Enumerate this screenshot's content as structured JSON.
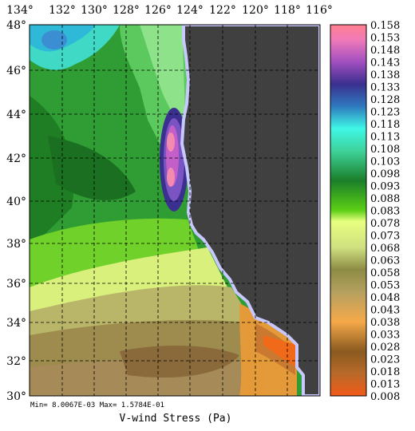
{
  "map": {
    "title": "V-wind Stress (Pa)",
    "stats": "Min= 8.0067E-03  Max= 1.5784E-01",
    "lon_labels": [
      "134°",
      "132°",
      "130°",
      "128°",
      "126°",
      "124°",
      "122°",
      "120°",
      "118°",
      "116°"
    ],
    "lat_labels": [
      "48°",
      "46°",
      "44°",
      "42°",
      "40°",
      "38°",
      "36°",
      "34°",
      "32°",
      "30°"
    ],
    "lon_range": [
      -134,
      -116
    ],
    "lat_range": [
      30,
      48
    ],
    "land_color": "#404040",
    "coast_color": "#c8c8ff",
    "grid_style": "dashed black",
    "colorbar": {
      "min": 0.008,
      "max": 0.158,
      "labels": [
        "0.158",
        "0.153",
        "0.148",
        "0.143",
        "0.138",
        "0.133",
        "0.128",
        "0.123",
        "0.118",
        "0.113",
        "0.108",
        "0.103",
        "0.098",
        "0.093",
        "0.088",
        "0.083",
        "0.078",
        "0.073",
        "0.068",
        "0.063",
        "0.058",
        "0.053",
        "0.048",
        "0.043",
        "0.038",
        "0.033",
        "0.028",
        "0.023",
        "0.018",
        "0.013",
        "0.008"
      ]
    }
  }
}
